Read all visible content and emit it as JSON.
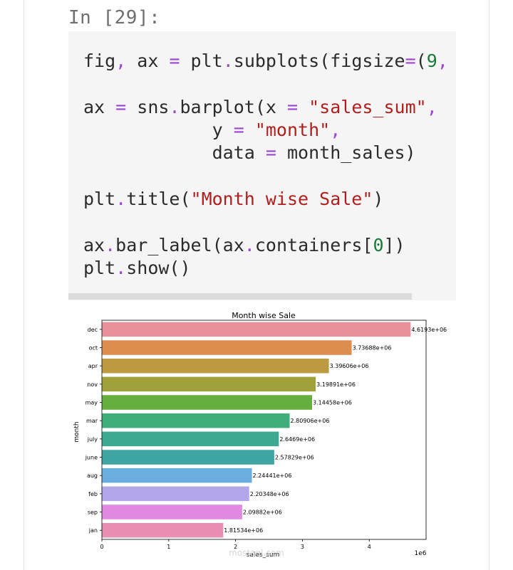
{
  "notebook": {
    "prompt": "In [29]:",
    "code": {
      "l1a": "fig",
      "l1b": ",",
      "l1c": " ax ",
      "l1d": "=",
      "l1e": " plt",
      "l1f": ".",
      "l1g": "subplots(figsize",
      "l1h": "=",
      "l1i": "(",
      "l1j": "9",
      "l1k": ",",
      "l2a": "ax ",
      "l2b": "=",
      "l2c": " sns",
      "l2d": ".",
      "l2e": "barplot(x ",
      "l2f": "=",
      "l2g": " \"sales_sum\"",
      "l2h": ",",
      "l3a": "            y ",
      "l3b": "=",
      "l3c": " \"month\"",
      "l3d": ",",
      "l4a": "            data ",
      "l4b": "=",
      "l4c": " month_sales)",
      "l5a": "plt",
      "l5b": ".",
      "l5c": "title(",
      "l5d": "\"Month wise Sale\"",
      "l5e": ")",
      "l6a": "ax",
      "l6b": ".",
      "l6c": "bar_label(ax",
      "l6d": ".",
      "l6e": "containers[",
      "l6f": "0",
      "l6g": "])",
      "l7a": "plt",
      "l7b": ".",
      "l7c": "show()"
    }
  },
  "chart_data": {
    "type": "bar",
    "orientation": "horizontal",
    "title": "Month wise Sale",
    "xlabel": "sales_sum",
    "ylabel": "month",
    "x_multiplier": "1e6",
    "xlim": [
      0,
      4.85
    ],
    "xticks": [
      "0",
      "1",
      "2",
      "3",
      "4"
    ],
    "categories": [
      "dec",
      "oct",
      "apr",
      "nov",
      "may",
      "mar",
      "july",
      "june",
      "aug",
      "feb",
      "sep",
      "jan"
    ],
    "values": [
      4619300,
      3736880,
      3396060,
      3198910,
      3144580,
      2809060,
      2646900,
      2578290,
      2244410,
      2203480,
      2098820,
      1815340
    ],
    "labels": [
      "4.6193e+06",
      "3.73688e+06",
      "3.39606e+06",
      "3.19891e+06",
      "3.14458e+06",
      "2.80906e+06",
      "2.6469e+06",
      "2.57829e+06",
      "2.24441e+06",
      "2.20348e+06",
      "2.09882e+06",
      "1.81534e+06"
    ],
    "colors": [
      "#e8919d",
      "#df8d4f",
      "#bd9a3f",
      "#a0a13b",
      "#66ae3d",
      "#3fae7b",
      "#3da990",
      "#3ea5a3",
      "#6aaee0",
      "#b2a5e8",
      "#e188e0",
      "#ea8fb4"
    ],
    "grid": false,
    "legend": "none",
    "watermark": "mostaql.com"
  }
}
